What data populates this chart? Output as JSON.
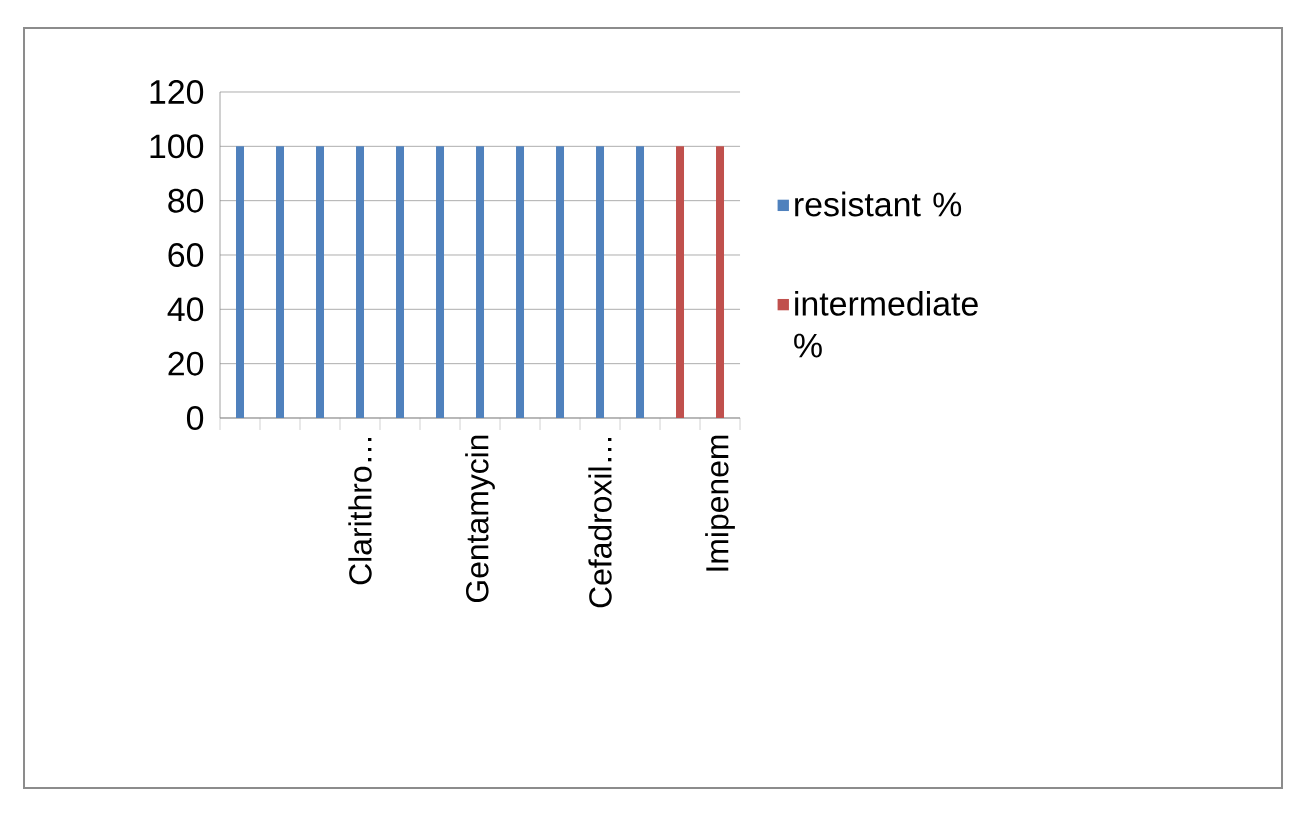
{
  "chart_data": {
    "type": "bar",
    "categories": [
      null,
      null,
      null,
      "Clarithro…",
      null,
      null,
      "Gentamycin",
      null,
      null,
      "Cefadroxil…",
      null,
      null,
      "Imipenem"
    ],
    "series": [
      {
        "name": "resistant %",
        "color": "#4f81bd",
        "values": [
          100,
          100,
          100,
          100,
          100,
          100,
          100,
          100,
          100,
          100,
          100,
          null,
          null
        ]
      },
      {
        "name": "intermediate %",
        "color": "#c0504d",
        "values": [
          null,
          null,
          null,
          null,
          null,
          null,
          null,
          null,
          null,
          null,
          null,
          100,
          100
        ]
      }
    ],
    "ylim": [
      0,
      120
    ],
    "yticks": [
      0,
      20,
      40,
      60,
      80,
      100,
      120
    ],
    "grid": "y",
    "legend": "right"
  }
}
